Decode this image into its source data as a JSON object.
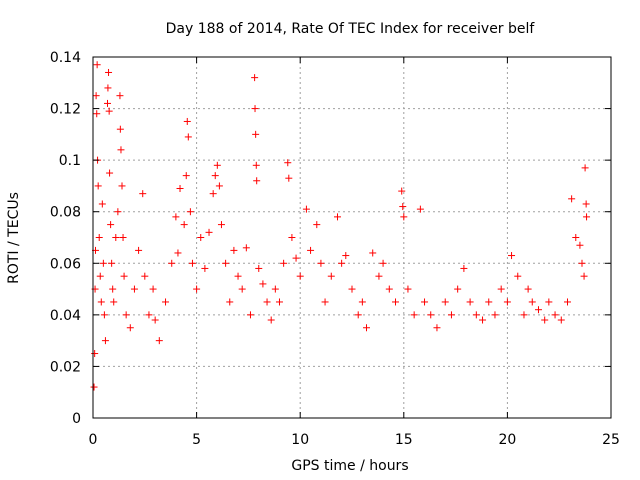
{
  "chart_data": {
    "type": "scatter",
    "title": "Day 188 of 2014, Rate Of TEC Index for receiver belf",
    "xlabel": "GPS time / hours",
    "ylabel": "ROTI / TECUs",
    "xlim": [
      0,
      25
    ],
    "ylim": [
      0,
      0.14
    ],
    "xticks": [
      0,
      5,
      10,
      15,
      20,
      25
    ],
    "xtick_labels": [
      "0",
      "5",
      "10",
      "15",
      "20",
      "25"
    ],
    "yticks": [
      0,
      0.02,
      0.04,
      0.06,
      0.08,
      0.1,
      0.12,
      0.14
    ],
    "ytick_labels": [
      "0",
      "0.02",
      "0.04",
      "0.06",
      "0.08",
      "0.1",
      "0.12",
      "0.14"
    ],
    "grid": true,
    "marker": "+",
    "marker_color": "#ff0000",
    "series": [
      {
        "name": "ROTI",
        "points": [
          [
            0.05,
            0.012
          ],
          [
            0.08,
            0.025
          ],
          [
            0.1,
            0.05
          ],
          [
            0.12,
            0.065
          ],
          [
            0.15,
            0.125
          ],
          [
            0.18,
            0.118
          ],
          [
            0.2,
            0.137
          ],
          [
            0.22,
            0.1
          ],
          [
            0.25,
            0.09
          ],
          [
            0.3,
            0.07
          ],
          [
            0.35,
            0.055
          ],
          [
            0.4,
            0.045
          ],
          [
            0.45,
            0.083
          ],
          [
            0.5,
            0.06
          ],
          [
            0.55,
            0.04
          ],
          [
            0.6,
            0.03
          ],
          [
            0.7,
            0.122
          ],
          [
            0.72,
            0.128
          ],
          [
            0.75,
            0.134
          ],
          [
            0.78,
            0.119
          ],
          [
            0.8,
            0.095
          ],
          [
            0.85,
            0.075
          ],
          [
            0.9,
            0.06
          ],
          [
            0.95,
            0.05
          ],
          [
            1.0,
            0.045
          ],
          [
            1.1,
            0.07
          ],
          [
            1.2,
            0.08
          ],
          [
            1.3,
            0.125
          ],
          [
            1.32,
            0.112
          ],
          [
            1.35,
            0.104
          ],
          [
            1.4,
            0.09
          ],
          [
            1.45,
            0.07
          ],
          [
            1.5,
            0.055
          ],
          [
            1.6,
            0.04
          ],
          [
            1.8,
            0.035
          ],
          [
            2.0,
            0.05
          ],
          [
            2.2,
            0.065
          ],
          [
            2.4,
            0.087
          ],
          [
            2.5,
            0.055
          ],
          [
            2.7,
            0.04
          ],
          [
            2.9,
            0.05
          ],
          [
            3.0,
            0.038
          ],
          [
            3.2,
            0.03
          ],
          [
            3.5,
            0.045
          ],
          [
            3.8,
            0.06
          ],
          [
            4.0,
            0.078
          ],
          [
            4.1,
            0.064
          ],
          [
            4.2,
            0.089
          ],
          [
            4.4,
            0.075
          ],
          [
            4.5,
            0.094
          ],
          [
            4.55,
            0.115
          ],
          [
            4.6,
            0.109
          ],
          [
            4.7,
            0.08
          ],
          [
            4.8,
            0.06
          ],
          [
            5.0,
            0.05
          ],
          [
            5.2,
            0.07
          ],
          [
            5.4,
            0.058
          ],
          [
            5.6,
            0.072
          ],
          [
            5.8,
            0.087
          ],
          [
            5.9,
            0.094
          ],
          [
            6.0,
            0.098
          ],
          [
            6.1,
            0.09
          ],
          [
            6.2,
            0.075
          ],
          [
            6.4,
            0.06
          ],
          [
            6.6,
            0.045
          ],
          [
            6.8,
            0.065
          ],
          [
            7.0,
            0.055
          ],
          [
            7.2,
            0.05
          ],
          [
            7.4,
            0.066
          ],
          [
            7.6,
            0.04
          ],
          [
            7.8,
            0.132
          ],
          [
            7.82,
            0.12
          ],
          [
            7.85,
            0.11
          ],
          [
            7.88,
            0.098
          ],
          [
            7.9,
            0.092
          ],
          [
            8.0,
            0.058
          ],
          [
            8.2,
            0.052
          ],
          [
            8.4,
            0.045
          ],
          [
            8.6,
            0.038
          ],
          [
            8.8,
            0.05
          ],
          [
            9.0,
            0.045
          ],
          [
            9.2,
            0.06
          ],
          [
            9.4,
            0.099
          ],
          [
            9.45,
            0.093
          ],
          [
            9.6,
            0.07
          ],
          [
            9.8,
            0.062
          ],
          [
            10.0,
            0.055
          ],
          [
            10.3,
            0.081
          ],
          [
            10.5,
            0.065
          ],
          [
            10.8,
            0.075
          ],
          [
            11.0,
            0.06
          ],
          [
            11.2,
            0.045
          ],
          [
            11.5,
            0.055
          ],
          [
            11.8,
            0.078
          ],
          [
            12.0,
            0.06
          ],
          [
            12.2,
            0.063
          ],
          [
            12.5,
            0.05
          ],
          [
            12.8,
            0.04
          ],
          [
            13.0,
            0.045
          ],
          [
            13.2,
            0.035
          ],
          [
            13.5,
            0.064
          ],
          [
            13.8,
            0.055
          ],
          [
            14.0,
            0.06
          ],
          [
            14.3,
            0.05
          ],
          [
            14.6,
            0.045
          ],
          [
            14.9,
            0.088
          ],
          [
            14.95,
            0.082
          ],
          [
            15.0,
            0.078
          ],
          [
            15.2,
            0.05
          ],
          [
            15.5,
            0.04
          ],
          [
            15.8,
            0.081
          ],
          [
            16.0,
            0.045
          ],
          [
            16.3,
            0.04
          ],
          [
            16.6,
            0.035
          ],
          [
            17.0,
            0.045
          ],
          [
            17.3,
            0.04
          ],
          [
            17.6,
            0.05
          ],
          [
            17.9,
            0.058
          ],
          [
            18.2,
            0.045
          ],
          [
            18.5,
            0.04
          ],
          [
            18.8,
            0.038
          ],
          [
            19.1,
            0.045
          ],
          [
            19.4,
            0.04
          ],
          [
            19.7,
            0.05
          ],
          [
            20.0,
            0.045
          ],
          [
            20.2,
            0.063
          ],
          [
            20.5,
            0.055
          ],
          [
            20.8,
            0.04
          ],
          [
            21.0,
            0.05
          ],
          [
            21.2,
            0.045
          ],
          [
            21.5,
            0.042
          ],
          [
            21.8,
            0.038
          ],
          [
            22.0,
            0.045
          ],
          [
            22.3,
            0.04
          ],
          [
            22.6,
            0.038
          ],
          [
            22.9,
            0.045
          ],
          [
            23.1,
            0.085
          ],
          [
            23.3,
            0.07
          ],
          [
            23.5,
            0.067
          ],
          [
            23.6,
            0.06
          ],
          [
            23.7,
            0.055
          ],
          [
            23.75,
            0.097
          ],
          [
            23.8,
            0.083
          ],
          [
            23.82,
            0.078
          ]
        ]
      }
    ]
  }
}
